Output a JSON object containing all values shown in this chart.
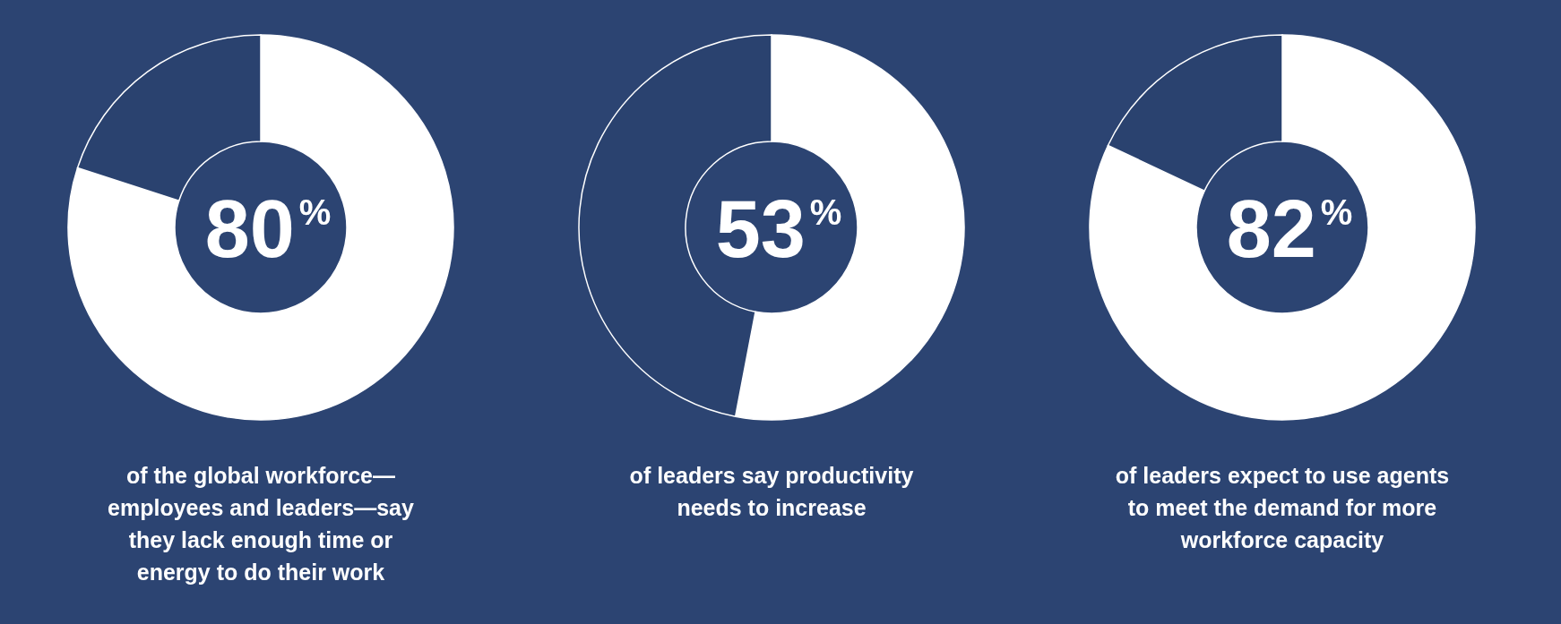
{
  "chart_data": [
    {
      "type": "donut",
      "categories": [
        null,
        null
      ],
      "values": [
        80,
        20
      ],
      "colors": [
        "#ffffff",
        "#2a426f"
      ],
      "value_labels": [
        "80$^{%}$",
        null
      ],
      "title": "of the global workforce—employees and leaders—say they lack enough time or energy to do their work"
    },
    {
      "type": "donut",
      "categories": [
        null,
        null
      ],
      "values": [
        53,
        47
      ],
      "colors": [
        "#ffffff",
        "#2a426f"
      ],
      "value_labels": [
        "53$^{%}$",
        null
      ],
      "title": "of leaders say productivity needs to increase"
    },
    {
      "type": "donut",
      "categories": [
        null,
        null
      ],
      "values": [
        82,
        18
      ],
      "colors": [
        "#ffffff",
        "#2a426f"
      ],
      "value_labels": [
        "82$^{%}$",
        null
      ],
      "title": "of leaders expect to use agents to meet the demand for more workforce capacity"
    }
  ]
}
